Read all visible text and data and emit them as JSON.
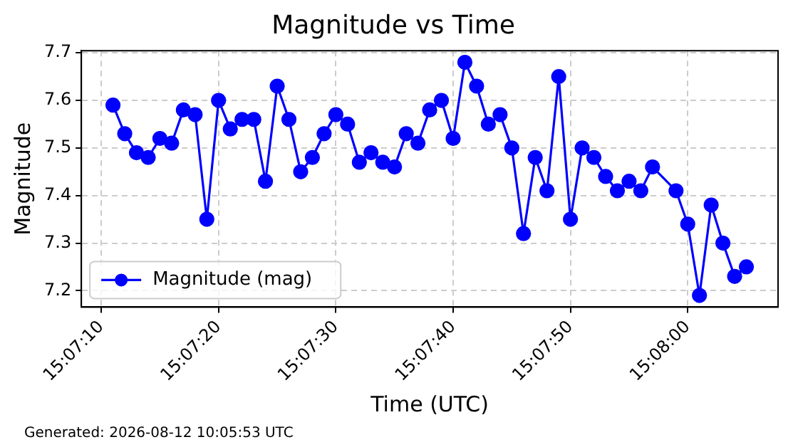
{
  "chart_data": {
    "type": "line",
    "title": "Magnitude vs Time",
    "xlabel": "Time (UTC)",
    "ylabel": "Magnitude",
    "x": [
      15.119722,
      15.12,
      15.120278,
      15.120556,
      15.120833,
      15.121111,
      15.121389,
      15.121667,
      15.121944,
      15.122222,
      15.1225,
      15.122778,
      15.123056,
      15.123333,
      15.123611,
      15.123889,
      15.124167,
      15.124444,
      15.124722,
      15.125,
      15.125278,
      15.125556,
      15.125833,
      15.126111,
      15.126389,
      15.126667,
      15.126944,
      15.127222,
      15.1275,
      15.127778,
      15.128056,
      15.128333,
      15.128611,
      15.128889,
      15.129167,
      15.129444,
      15.129722,
      15.13,
      15.130278,
      15.130556,
      15.130833,
      15.131111,
      15.131389,
      15.131667,
      15.131944,
      15.132222,
      15.1325,
      15.133056,
      15.133333,
      15.133611,
      15.133889,
      15.134167,
      15.134444,
      15.134722
    ],
    "series": [
      {
        "name": "Magnitude (mag)",
        "color": "#0000ff",
        "values": [
          7.59,
          7.53,
          7.49,
          7.48,
          7.52,
          7.51,
          7.58,
          7.57,
          7.35,
          7.6,
          7.54,
          7.56,
          7.56,
          7.43,
          7.63,
          7.56,
          7.45,
          7.48,
          7.53,
          7.57,
          7.55,
          7.47,
          7.49,
          7.47,
          7.46,
          7.53,
          7.51,
          7.58,
          7.6,
          7.52,
          7.68,
          7.63,
          7.55,
          7.57,
          7.5,
          7.32,
          7.48,
          7.41,
          7.65,
          7.35,
          7.5,
          7.48,
          7.44,
          7.41,
          7.43,
          7.41,
          7.46,
          7.41,
          7.34,
          7.19,
          7.38,
          7.3,
          7.23,
          7.25
        ]
      }
    ],
    "xlim": [
      15.118972,
      15.135472
    ],
    "xticks": [
      {
        "value": 15.119444,
        "label": "15:07:10"
      },
      {
        "value": 15.122222,
        "label": "15:07:20"
      },
      {
        "value": 15.125,
        "label": "15:07:30"
      },
      {
        "value": 15.127778,
        "label": "15:07:40"
      },
      {
        "value": 15.130556,
        "label": "15:07:50"
      },
      {
        "value": 15.133333,
        "label": "15:08:00"
      }
    ],
    "ylim": [
      7.1655,
      7.7045
    ],
    "yticks": [
      7.2,
      7.3,
      7.4,
      7.5,
      7.6,
      7.7
    ],
    "grid": true,
    "legend": "bottom left",
    "marker": "circle",
    "line_style": "solid",
    "annotations": [
      "Generated: 2026-08-12 10:05:53 UTC"
    ]
  }
}
